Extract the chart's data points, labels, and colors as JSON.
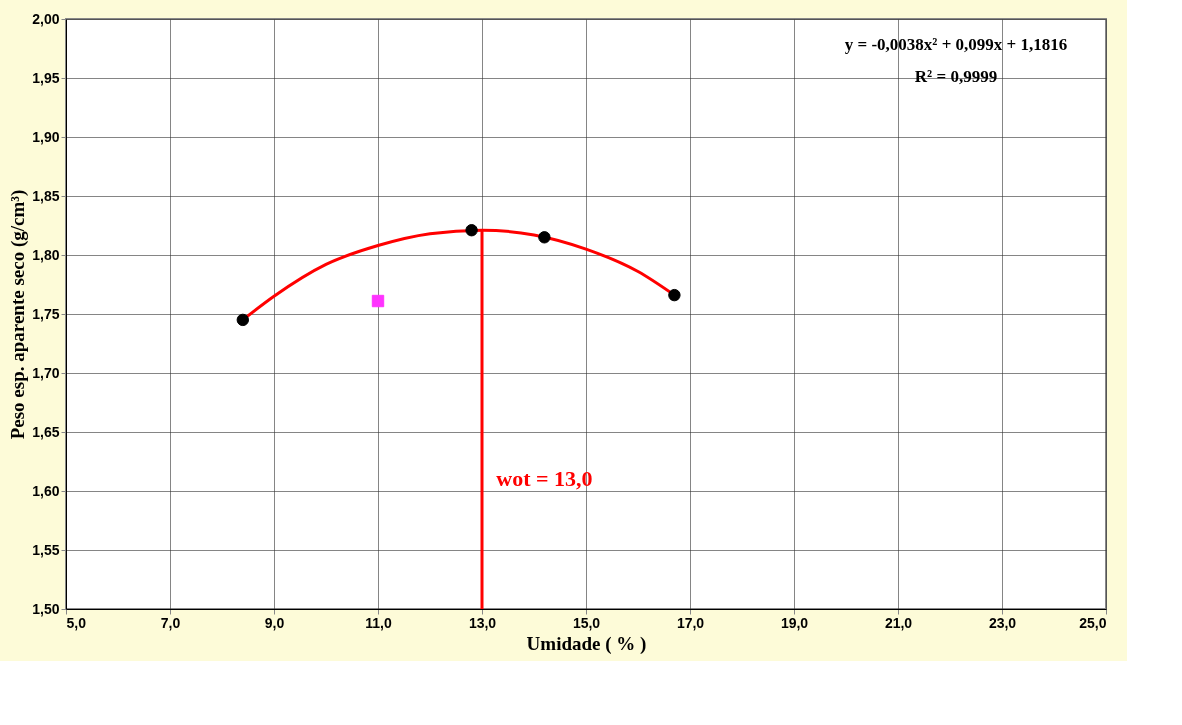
{
  "chart_data": {
    "type": "scatter",
    "xlabel": "Umidade ( % )",
    "ylabel": "Peso esp. aparente seco (g/cm³)",
    "series": [
      {
        "type": "line",
        "color": "#ff0000",
        "x": [
          8.4,
          9.0,
          10.0,
          11.0,
          12.0,
          13.0,
          14.0,
          15.0,
          16.0,
          16.7
        ],
        "values": [
          1.745,
          1.765,
          1.792,
          1.808,
          1.818,
          1.821,
          1.817,
          1.805,
          1.786,
          1.766
        ]
      },
      {
        "marker": "circle",
        "color": "#000000",
        "x": [
          8.4,
          12.8,
          14.2,
          16.7
        ],
        "values": [
          1.745,
          1.821,
          1.815,
          1.766
        ]
      },
      {
        "type": "scatter",
        "marker": "square",
        "color": "#ff33ff",
        "x": [
          11.0
        ],
        "values": [
          1.761
        ]
      },
      {
        "type": "line",
        "color": "#ff0000",
        "x": [
          13.0,
          13.0
        ],
        "values": [
          1.821,
          1.5
        ]
      }
    ],
    "annotations": [
      "y = -0,0038x² + 0,099x + 1,1816",
      "R² = 0,9999",
      "wot = 13,0"
    ],
    "xlim": [
      5,
      25
    ],
    "ylim": [
      1.5,
      2.0
    ],
    "xticks": [
      {
        "value": 5,
        "label": "5,0"
      },
      {
        "value": 7,
        "label": "7,0"
      },
      {
        "value": 9,
        "label": "9,0"
      },
      {
        "value": 11,
        "label": "11,0"
      },
      {
        "value": 13,
        "label": "13,0"
      },
      {
        "value": 15,
        "label": "15,0"
      },
      {
        "value": 17,
        "label": "17,0"
      },
      {
        "value": 19,
        "label": "19,0"
      },
      {
        "value": 21,
        "label": "21,0"
      },
      {
        "value": 23,
        "label": "23,0"
      },
      {
        "value": 25,
        "label": "25,0"
      }
    ],
    "yticks": [
      {
        "value": 1.5,
        "label": "1,50"
      },
      {
        "value": 1.55,
        "label": "1,55"
      },
      {
        "value": 1.6,
        "label": "1,60"
      },
      {
        "value": 1.65,
        "label": "1,65"
      },
      {
        "value": 1.7,
        "label": "1,70"
      },
      {
        "value": 1.75,
        "label": "1,75"
      },
      {
        "value": 1.8,
        "label": "1,80"
      },
      {
        "value": 1.85,
        "label": "1,85"
      },
      {
        "value": 1.9,
        "label": "1,90"
      },
      {
        "value": 1.95,
        "label": "1,95"
      },
      {
        "value": 2.0,
        "label": "2,00"
      }
    ],
    "grid": true
  }
}
